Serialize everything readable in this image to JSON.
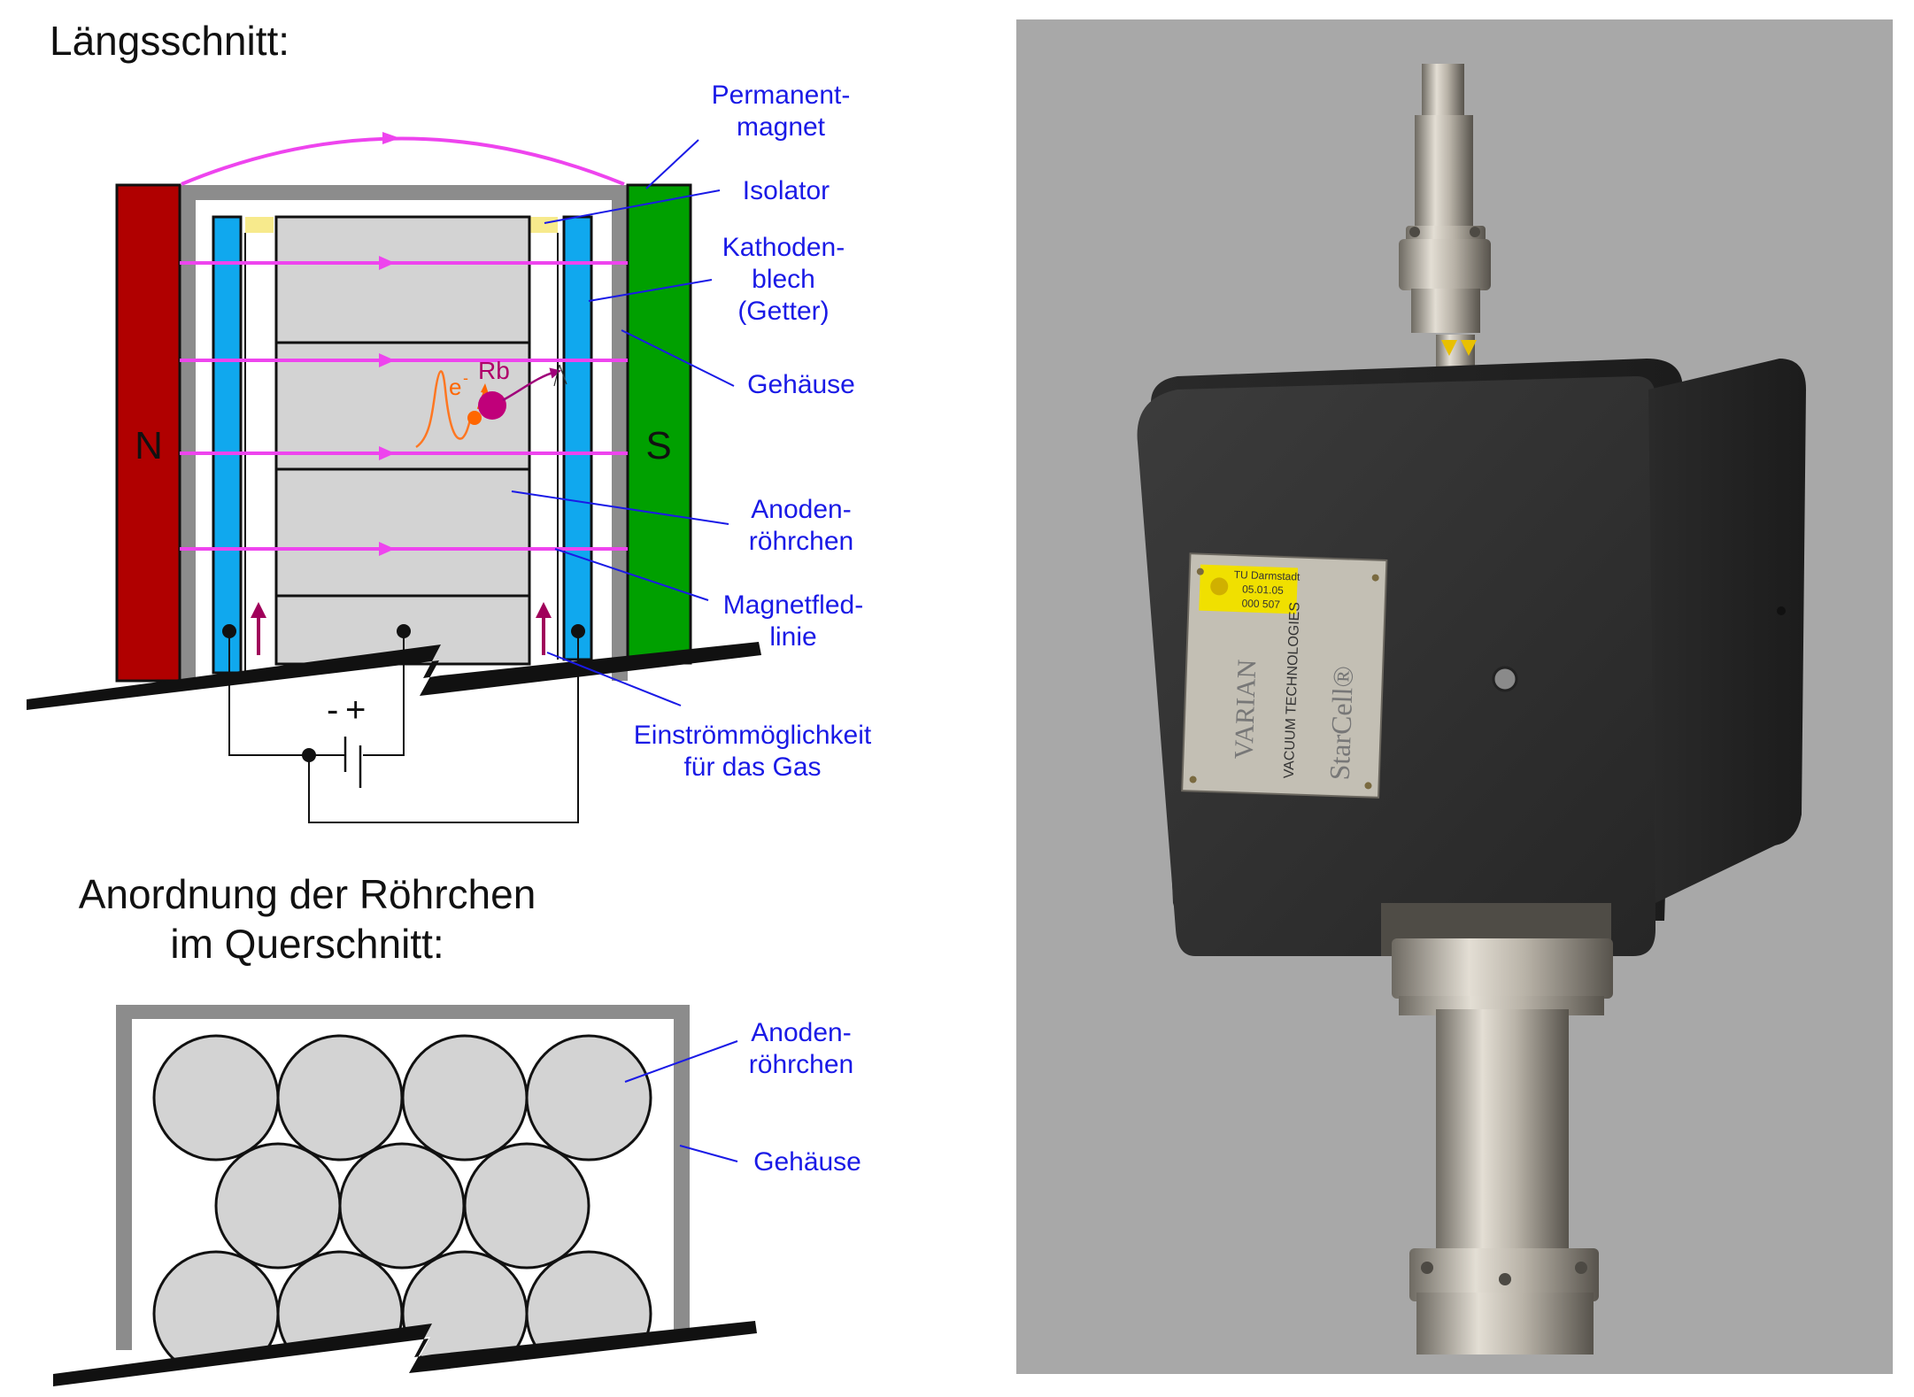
{
  "longitudinal": {
    "title": "Längsschnitt:",
    "pole_north": "N",
    "pole_south": "S",
    "minus": "-",
    "plus": "+",
    "rb": "Rb",
    "electron": "e",
    "electron_sup": "-",
    "labels": {
      "permanent_1": "Permanent-",
      "permanent_2": "magnet",
      "isolator": "Isolator",
      "cathode_1": "Kathoden-",
      "cathode_2": "blech",
      "cathode_3": "(Getter)",
      "housing": "Gehäuse",
      "anode_1": "Anoden-",
      "anode_2": "röhrchen",
      "fieldline_1": "Magnetfled-",
      "fieldline_2": "linie",
      "inflow_1": "Einströmmöglichkeit",
      "inflow_2": "für das Gas"
    }
  },
  "cross_section": {
    "title_1": "Anordnung der Röhrchen",
    "title_2": "im Querschnitt:",
    "labels": {
      "anode_1": "Anoden-",
      "anode_2": "röhrchen",
      "housing": "Gehäuse"
    }
  },
  "photo": {
    "label_line1": "TU Darmstadt",
    "label_line2": "05.01.05",
    "label_line3": "000 507",
    "plate_brand": "VARIAN",
    "plate_sub": "VACUUM TECHNOLOGIES",
    "plate_product": "StarCell®"
  },
  "colors": {
    "magnet_north": "#b00000",
    "magnet_south": "#00a000",
    "cathode": "#10a8ee",
    "field_line": "#ee44ee",
    "label_blue": "#1a1ae6",
    "housing_gray": "#8c8c8c",
    "anode_fill": "#d3d3d3",
    "photo_background": "#a8a8a8"
  }
}
